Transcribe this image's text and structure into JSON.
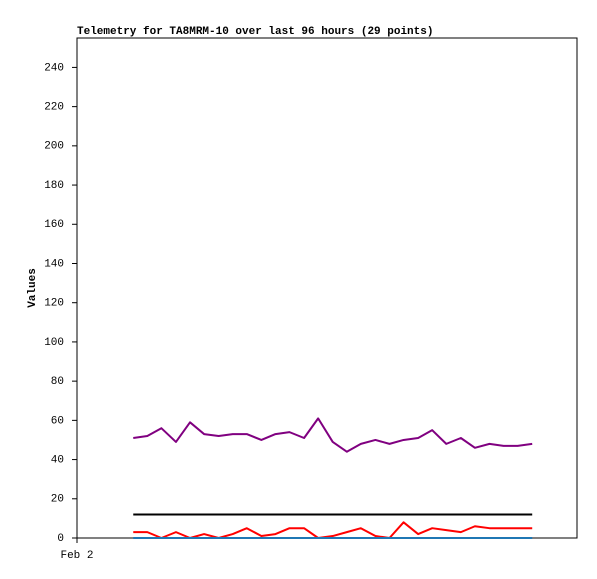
{
  "chart_data": {
    "type": "line",
    "title": "Telemetry for TA8MRM-10 over last 96 hours (29 points)",
    "y_label": "Values",
    "x": [
      10.8,
      13.5,
      16.2,
      19,
      21.7,
      24.4,
      27.2,
      29.9,
      32.6,
      35.4,
      38.1,
      40.8,
      43.6,
      46.3,
      49.1,
      51.8,
      54.5,
      57.3,
      60,
      62.7,
      65.5,
      68.2,
      70.9,
      73.7,
      76.4,
      79.2,
      81.9,
      84.6,
      87.4
    ],
    "xlim": [
      0,
      96
    ],
    "xticks": [
      {
        "value": 0,
        "label": "Feb 2"
      }
    ],
    "ylim": [
      0,
      255
    ],
    "yticks": [
      0,
      20,
      40,
      60,
      80,
      100,
      120,
      140,
      160,
      180,
      200,
      220,
      240
    ],
    "grid": false,
    "series": [
      {
        "color": "#800080",
        "values": [
          51,
          52,
          56,
          49,
          59,
          53,
          52,
          53,
          53,
          50,
          53,
          54,
          51,
          61,
          49,
          44,
          48,
          50,
          48,
          50,
          51,
          55,
          48,
          51,
          46,
          48,
          47,
          47,
          48
        ]
      },
      {
        "color": "#000000",
        "values": [
          12,
          12,
          12,
          12,
          12,
          12,
          12,
          12,
          12,
          12,
          12,
          12,
          12,
          12,
          12,
          12,
          12,
          12,
          12,
          12,
          12,
          12,
          12,
          12,
          12,
          12,
          12,
          12,
          12
        ]
      },
      {
        "color": "#ff0000",
        "values": [
          3,
          3,
          0,
          3,
          0,
          2,
          0,
          2,
          5,
          1,
          2,
          5,
          5,
          0,
          1,
          3,
          5,
          1,
          0,
          8,
          2,
          5,
          4,
          3,
          6,
          5,
          5,
          5,
          5
        ]
      },
      {
        "color": "#1f77b4",
        "values": [
          0,
          0,
          0,
          0,
          0,
          0,
          0,
          0,
          0,
          0,
          0,
          0,
          0,
          0,
          0,
          0,
          0,
          0,
          0,
          0,
          0,
          0,
          0,
          0,
          0,
          0,
          0,
          0,
          0
        ]
      }
    ]
  }
}
